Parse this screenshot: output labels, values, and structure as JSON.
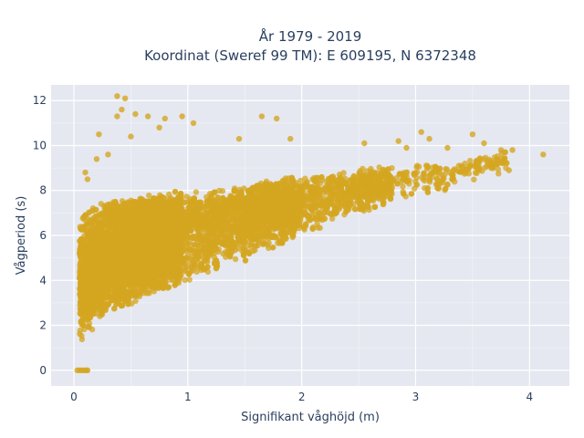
{
  "colors": {
    "background": "#ffffff",
    "plot_background": "#e5e8f0",
    "grid": "#ffffff",
    "text": "#2a3f5f",
    "marker": "#d4a520"
  },
  "chart_data": {
    "type": "scatter",
    "title_line1": "År 1979 - 2019",
    "title_line2": "Koordinat (Sweref 99 TM): E 609195, N 6372348",
    "xlabel": "Signifikant våghöjd (m)",
    "ylabel": "Vågperiod (s)",
    "xlim": [
      -0.2,
      4.35
    ],
    "ylim": [
      -0.7,
      12.7
    ],
    "xticks": [
      0,
      1,
      2,
      3,
      4
    ],
    "yticks": [
      0,
      2,
      4,
      6,
      8,
      10,
      12
    ],
    "grid": true,
    "legend": "none",
    "cloud_envelope": {
      "x": [
        0.05,
        0.1,
        0.2,
        0.3,
        0.5,
        0.75,
        1.0,
        1.25,
        1.5,
        1.75,
        2.0,
        2.25,
        2.5,
        2.75,
        3.0,
        3.25,
        3.5,
        3.75,
        4.0
      ],
      "y_lower": [
        1.1,
        1.5,
        2.0,
        2.3,
        2.8,
        3.4,
        3.9,
        4.3,
        4.8,
        5.4,
        6.0,
        6.4,
        6.9,
        7.3,
        7.6,
        7.9,
        8.3,
        8.7,
        9.3
      ],
      "y_upper": [
        6.8,
        7.1,
        7.4,
        7.6,
        7.7,
        7.9,
        8.0,
        8.1,
        8.3,
        8.5,
        8.7,
        8.8,
        9.0,
        9.1,
        9.2,
        9.3,
        9.5,
        9.7,
        9.8
      ],
      "y_mode": [
        3.5,
        4.0,
        4.6,
        5.0,
        5.6,
        6.2,
        6.6,
        7.0,
        7.3,
        7.6,
        7.9,
        8.1,
        8.3,
        8.5,
        8.7,
        8.9,
        9.1,
        9.3,
        9.5
      ]
    },
    "outlier_points": [
      {
        "x": 0.38,
        "y": 12.2
      },
      {
        "x": 0.45,
        "y": 12.1
      },
      {
        "x": 0.42,
        "y": 11.6
      },
      {
        "x": 0.38,
        "y": 11.3
      },
      {
        "x": 0.54,
        "y": 11.4
      },
      {
        "x": 0.65,
        "y": 11.3
      },
      {
        "x": 0.8,
        "y": 11.2
      },
      {
        "x": 0.95,
        "y": 11.3
      },
      {
        "x": 1.05,
        "y": 11.0
      },
      {
        "x": 1.65,
        "y": 11.3
      },
      {
        "x": 1.78,
        "y": 11.2
      },
      {
        "x": 0.22,
        "y": 10.5
      },
      {
        "x": 0.5,
        "y": 10.4
      },
      {
        "x": 0.75,
        "y": 10.8
      },
      {
        "x": 1.45,
        "y": 10.3
      },
      {
        "x": 1.9,
        "y": 10.3
      },
      {
        "x": 2.55,
        "y": 10.1
      },
      {
        "x": 2.85,
        "y": 10.2
      },
      {
        "x": 3.05,
        "y": 10.6
      },
      {
        "x": 3.12,
        "y": 10.3
      },
      {
        "x": 3.5,
        "y": 10.5
      },
      {
        "x": 2.92,
        "y": 9.9
      },
      {
        "x": 3.28,
        "y": 9.9
      },
      {
        "x": 3.6,
        "y": 10.1
      },
      {
        "x": 3.75,
        "y": 9.8
      },
      {
        "x": 3.85,
        "y": 9.8
      },
      {
        "x": 4.12,
        "y": 9.6
      },
      {
        "x": 3.4,
        "y": 9.1
      },
      {
        "x": 3.82,
        "y": 8.9
      },
      {
        "x": 0.2,
        "y": 9.4
      },
      {
        "x": 0.1,
        "y": 8.8
      },
      {
        "x": 0.12,
        "y": 8.5
      },
      {
        "x": 0.3,
        "y": 9.6
      }
    ],
    "zero_points": [
      {
        "x": 0.03,
        "y": 0
      },
      {
        "x": 0.05,
        "y": 0
      },
      {
        "x": 0.07,
        "y": 0
      },
      {
        "x": 0.09,
        "y": 0
      },
      {
        "x": 0.11,
        "y": 0
      },
      {
        "x": 0.12,
        "y": 0
      }
    ]
  }
}
